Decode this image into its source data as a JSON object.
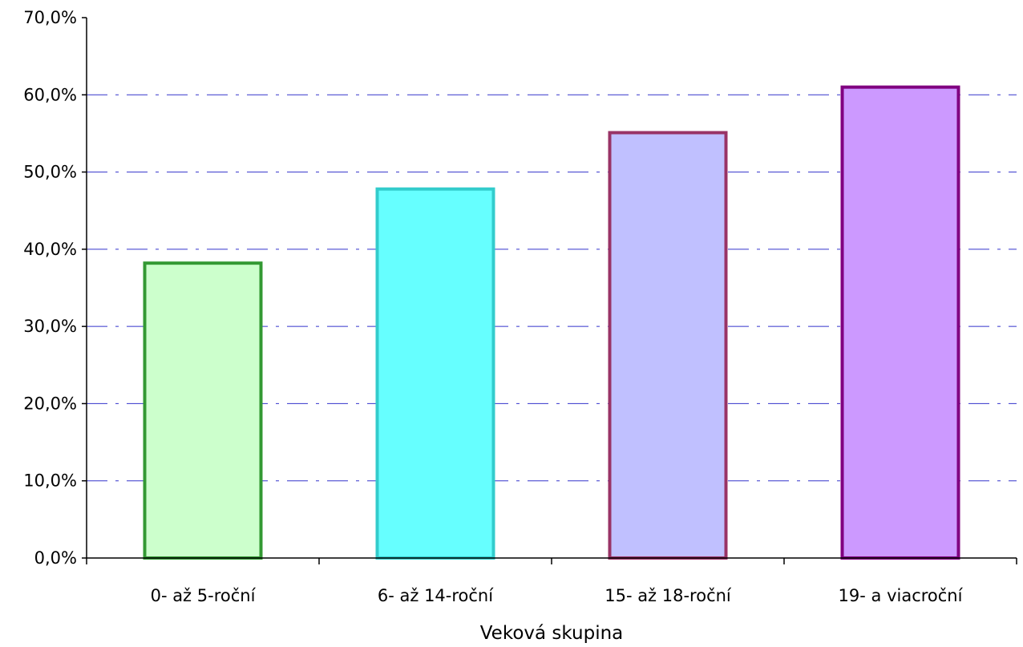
{
  "chart_data": {
    "type": "bar",
    "title": "",
    "xlabel": "Veková skupina",
    "ylabel": "",
    "categories": [
      "0- až 5-roční",
      "6- až 14-roční",
      "15- až 18-roční",
      "19- a viacroční"
    ],
    "values": [
      38.2,
      47.8,
      55.1,
      61.0
    ],
    "ylim": [
      0,
      70
    ],
    "yticks": [
      0,
      10,
      20,
      30,
      40,
      50,
      60,
      70
    ],
    "ytick_labels": [
      "0,0%",
      "10,0%",
      "20,0%",
      "30,0%",
      "40,0%",
      "50,0%",
      "60,0%",
      "70,0%"
    ],
    "grid": true,
    "legend": "none",
    "colors": {
      "fills": [
        "#ccffcc",
        "#66ffff",
        "#c0c0ff",
        "#cc99ff"
      ],
      "strokes": [
        "#339933",
        "#33cccc",
        "#993366",
        "#800080"
      ],
      "grid": "#3333cc",
      "axis": "#000000"
    }
  }
}
